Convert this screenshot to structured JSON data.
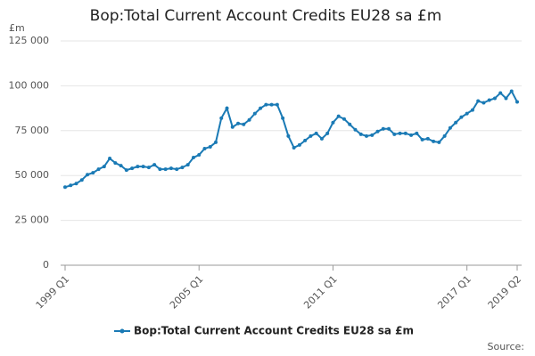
{
  "chart_data": {
    "type": "line",
    "title": "Bop:Total Current Account Credits EU28 sa £m",
    "y_unit": "£m",
    "source": "Source:",
    "categories": [
      "1999 Q1",
      null,
      null,
      null,
      null,
      null,
      null,
      null,
      null,
      null,
      null,
      null,
      null,
      null,
      null,
      null,
      null,
      null,
      null,
      null,
      null,
      null,
      null,
      null,
      "2005 Q1",
      null,
      null,
      null,
      null,
      null,
      null,
      null,
      null,
      null,
      null,
      null,
      null,
      null,
      null,
      null,
      null,
      null,
      null,
      null,
      null,
      null,
      null,
      null,
      "2011 Q1",
      null,
      null,
      null,
      null,
      null,
      null,
      null,
      null,
      null,
      null,
      null,
      null,
      null,
      null,
      null,
      null,
      null,
      null,
      null,
      null,
      null,
      null,
      null,
      "2017 Q1",
      null,
      null,
      null,
      null,
      null,
      null,
      null,
      null,
      "2019 Q2"
    ],
    "series": [
      {
        "name": "Bop:Total Current Account Credits EU28 sa £m",
        "color": "#1a7ab5",
        "values": [
          43500,
          44500,
          45500,
          47500,
          50500,
          51500,
          53500,
          55000,
          59500,
          57000,
          55500,
          53000,
          54000,
          55000,
          55000,
          54500,
          56000,
          53500,
          53500,
          54000,
          53500,
          54500,
          56000,
          60000,
          61500,
          65000,
          66000,
          68500,
          82000,
          87500,
          77000,
          79000,
          78500,
          81000,
          84500,
          87500,
          89500,
          89500,
          89500,
          82000,
          72000,
          65500,
          67000,
          69500,
          72000,
          73500,
          70500,
          73500,
          79500,
          83000,
          81500,
          78500,
          75500,
          73000,
          72000,
          72500,
          74500,
          76000,
          76000,
          73000,
          73500,
          73500,
          72500,
          73500,
          70000,
          70500,
          69000,
          68500,
          72000,
          76500,
          79500,
          82500,
          84500,
          86500,
          91500,
          90500,
          92000,
          93000,
          96000,
          93000,
          97000,
          91000
        ]
      }
    ],
    "ylim": [
      0,
      125000
    ],
    "yticks": [
      0,
      {
        "value": 25000,
        "label": "25 000"
      },
      {
        "value": 50000,
        "label": "50 000"
      },
      {
        "value": 75000,
        "label": "75 000"
      },
      {
        "value": 100000,
        "label": "100 000"
      },
      {
        "value": 125000,
        "label": "125 000"
      }
    ],
    "grid": true
  }
}
